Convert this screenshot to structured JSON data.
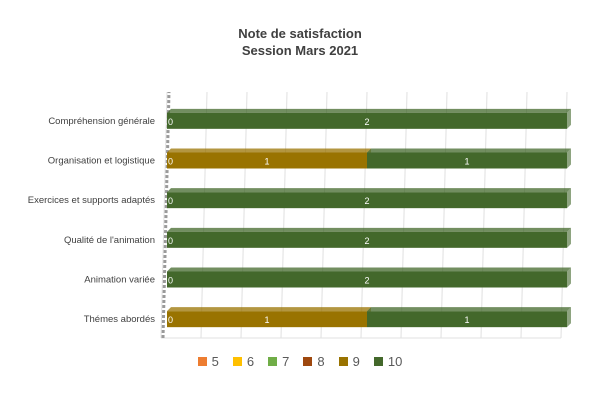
{
  "chart_data": {
    "type": "bar",
    "orientation": "horizontal",
    "stacked": true,
    "title": "Note de satisfaction",
    "subtitle": "Session Mars 2021",
    "categories": [
      "Compréhension générale",
      "Organisation et logistique",
      "Exercices et supports adaptés",
      "Qualité de l'animation",
      "Animation variée",
      "Thémes abordés"
    ],
    "series": [
      {
        "name": "5",
        "color": "#ed7d31",
        "values": [
          0,
          0,
          0,
          0,
          0,
          0
        ]
      },
      {
        "name": "6",
        "color": "#ffc000",
        "values": [
          0,
          0,
          0,
          0,
          0,
          0
        ]
      },
      {
        "name": "7",
        "color": "#70ad47",
        "values": [
          0,
          0,
          0,
          0,
          0,
          0
        ]
      },
      {
        "name": "8",
        "color": "#9e480e",
        "values": [
          0,
          0,
          0,
          0,
          0,
          0
        ]
      },
      {
        "name": "9",
        "color": "#997300",
        "values": [
          0,
          1,
          0,
          0,
          0,
          1
        ]
      },
      {
        "name": "10",
        "color": "#43682b",
        "values": [
          2,
          1,
          2,
          2,
          2,
          1
        ]
      }
    ],
    "legend": "bottom",
    "grid": true
  }
}
